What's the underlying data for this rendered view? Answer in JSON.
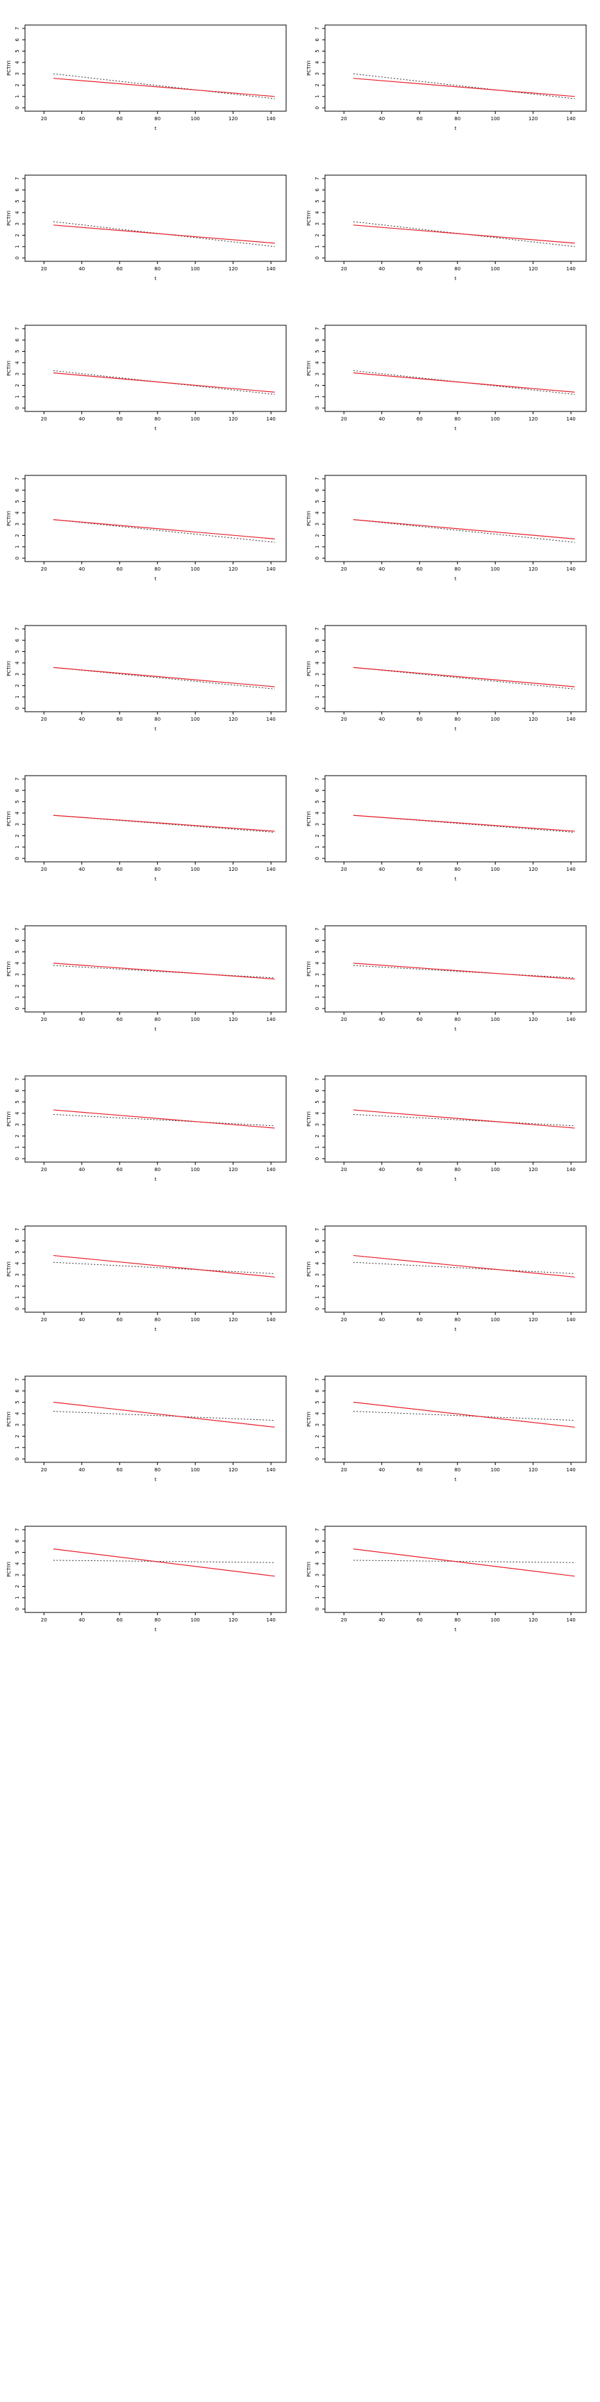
{
  "figure": {
    "columns": 2
  },
  "style": {
    "fitted_color": "#e8202a",
    "observed_color": "#333333"
  },
  "chart_data": {
    "type": "line",
    "xlabel": "t",
    "ylabel": "PCTIYI",
    "xlim": [
      10,
      148
    ],
    "ylim": [
      -0.3,
      7.3
    ],
    "xticks": [
      "20",
      "40",
      "60",
      "80",
      "100",
      "120",
      "140"
    ],
    "yticks": [
      "0",
      "1",
      "2",
      "3",
      "4",
      "5",
      "6",
      "7"
    ],
    "grid": false,
    "x_range": [
      25,
      142
    ],
    "panels": [
      {
        "fitted": [
          2.6,
          1.0
        ],
        "observed": [
          3.0,
          0.8
        ]
      },
      {
        "fitted": [
          2.6,
          1.0
        ],
        "observed": [
          3.0,
          0.8
        ]
      },
      {
        "fitted": [
          2.9,
          1.3
        ],
        "observed": [
          3.2,
          1.0
        ]
      },
      {
        "fitted": [
          2.9,
          1.3
        ],
        "observed": [
          3.2,
          1.0
        ]
      },
      {
        "fitted": [
          3.1,
          1.4
        ],
        "observed": [
          3.3,
          1.2
        ]
      },
      {
        "fitted": [
          3.1,
          1.4
        ],
        "observed": [
          3.3,
          1.2
        ]
      },
      {
        "fitted": [
          3.4,
          1.7
        ],
        "observed": [
          3.4,
          1.4
        ]
      },
      {
        "fitted": [
          3.4,
          1.7
        ],
        "observed": [
          3.4,
          1.4
        ]
      },
      {
        "fitted": [
          3.6,
          1.9
        ],
        "observed": [
          3.6,
          1.7
        ]
      },
      {
        "fitted": [
          3.6,
          1.9
        ],
        "observed": [
          3.6,
          1.7
        ]
      },
      {
        "fitted": [
          3.8,
          2.4
        ],
        "observed": [
          3.8,
          2.3
        ]
      },
      {
        "fitted": [
          3.8,
          2.4
        ],
        "observed": [
          3.8,
          2.3
        ]
      },
      {
        "fitted": [
          4.0,
          2.6
        ],
        "observed": [
          3.8,
          2.7
        ]
      },
      {
        "fitted": [
          4.0,
          2.6
        ],
        "observed": [
          3.8,
          2.7
        ]
      },
      {
        "fitted": [
          4.3,
          2.7
        ],
        "observed": [
          3.9,
          2.9
        ]
      },
      {
        "fitted": [
          4.3,
          2.7
        ],
        "observed": [
          3.9,
          2.9
        ]
      },
      {
        "fitted": [
          4.7,
          2.8
        ],
        "observed": [
          4.1,
          3.1
        ]
      },
      {
        "fitted": [
          4.7,
          2.8
        ],
        "observed": [
          4.1,
          3.1
        ]
      },
      {
        "fitted": [
          5.0,
          2.8
        ],
        "observed": [
          4.2,
          3.4
        ]
      },
      {
        "fitted": [
          5.0,
          2.8
        ],
        "observed": [
          4.2,
          3.4
        ]
      },
      {
        "fitted": [
          5.3,
          2.9
        ],
        "observed": [
          4.3,
          4.1
        ]
      },
      {
        "fitted": [
          5.3,
          2.9
        ],
        "observed": [
          4.3,
          4.1
        ]
      }
    ]
  }
}
